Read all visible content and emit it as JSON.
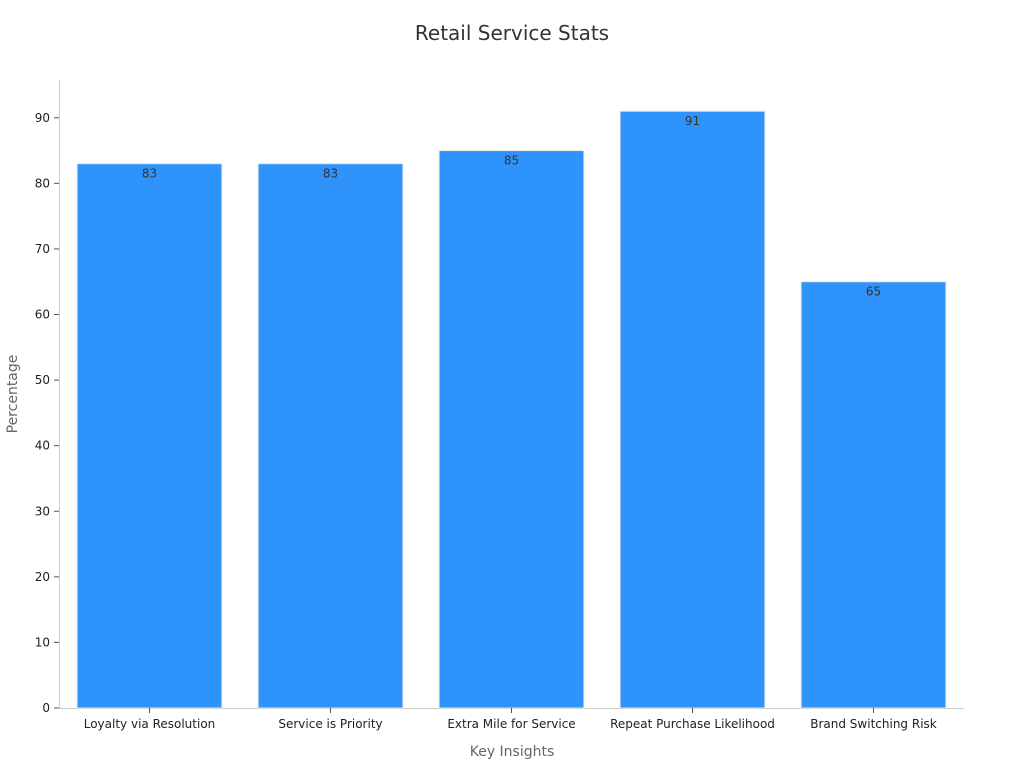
{
  "chart_data": {
    "type": "bar",
    "title": "Retail Service Stats",
    "xlabel": "Key Insights",
    "ylabel": "Percentage",
    "categories": [
      "Loyalty via Resolution",
      "Service is Priority",
      "Extra Mile for Service",
      "Repeat Purchase Likelihood",
      "Brand Switching Risk"
    ],
    "values": [
      83,
      83,
      85,
      91,
      65
    ],
    "ylim": [
      0,
      95
    ],
    "yticks": [
      0,
      10,
      20,
      30,
      40,
      50,
      60,
      70,
      80,
      90
    ],
    "grid": false,
    "legend": "none",
    "data_labels": true,
    "colors": {
      "bar": "#2e93fa",
      "bar_edge": "#e6e6e6"
    }
  }
}
